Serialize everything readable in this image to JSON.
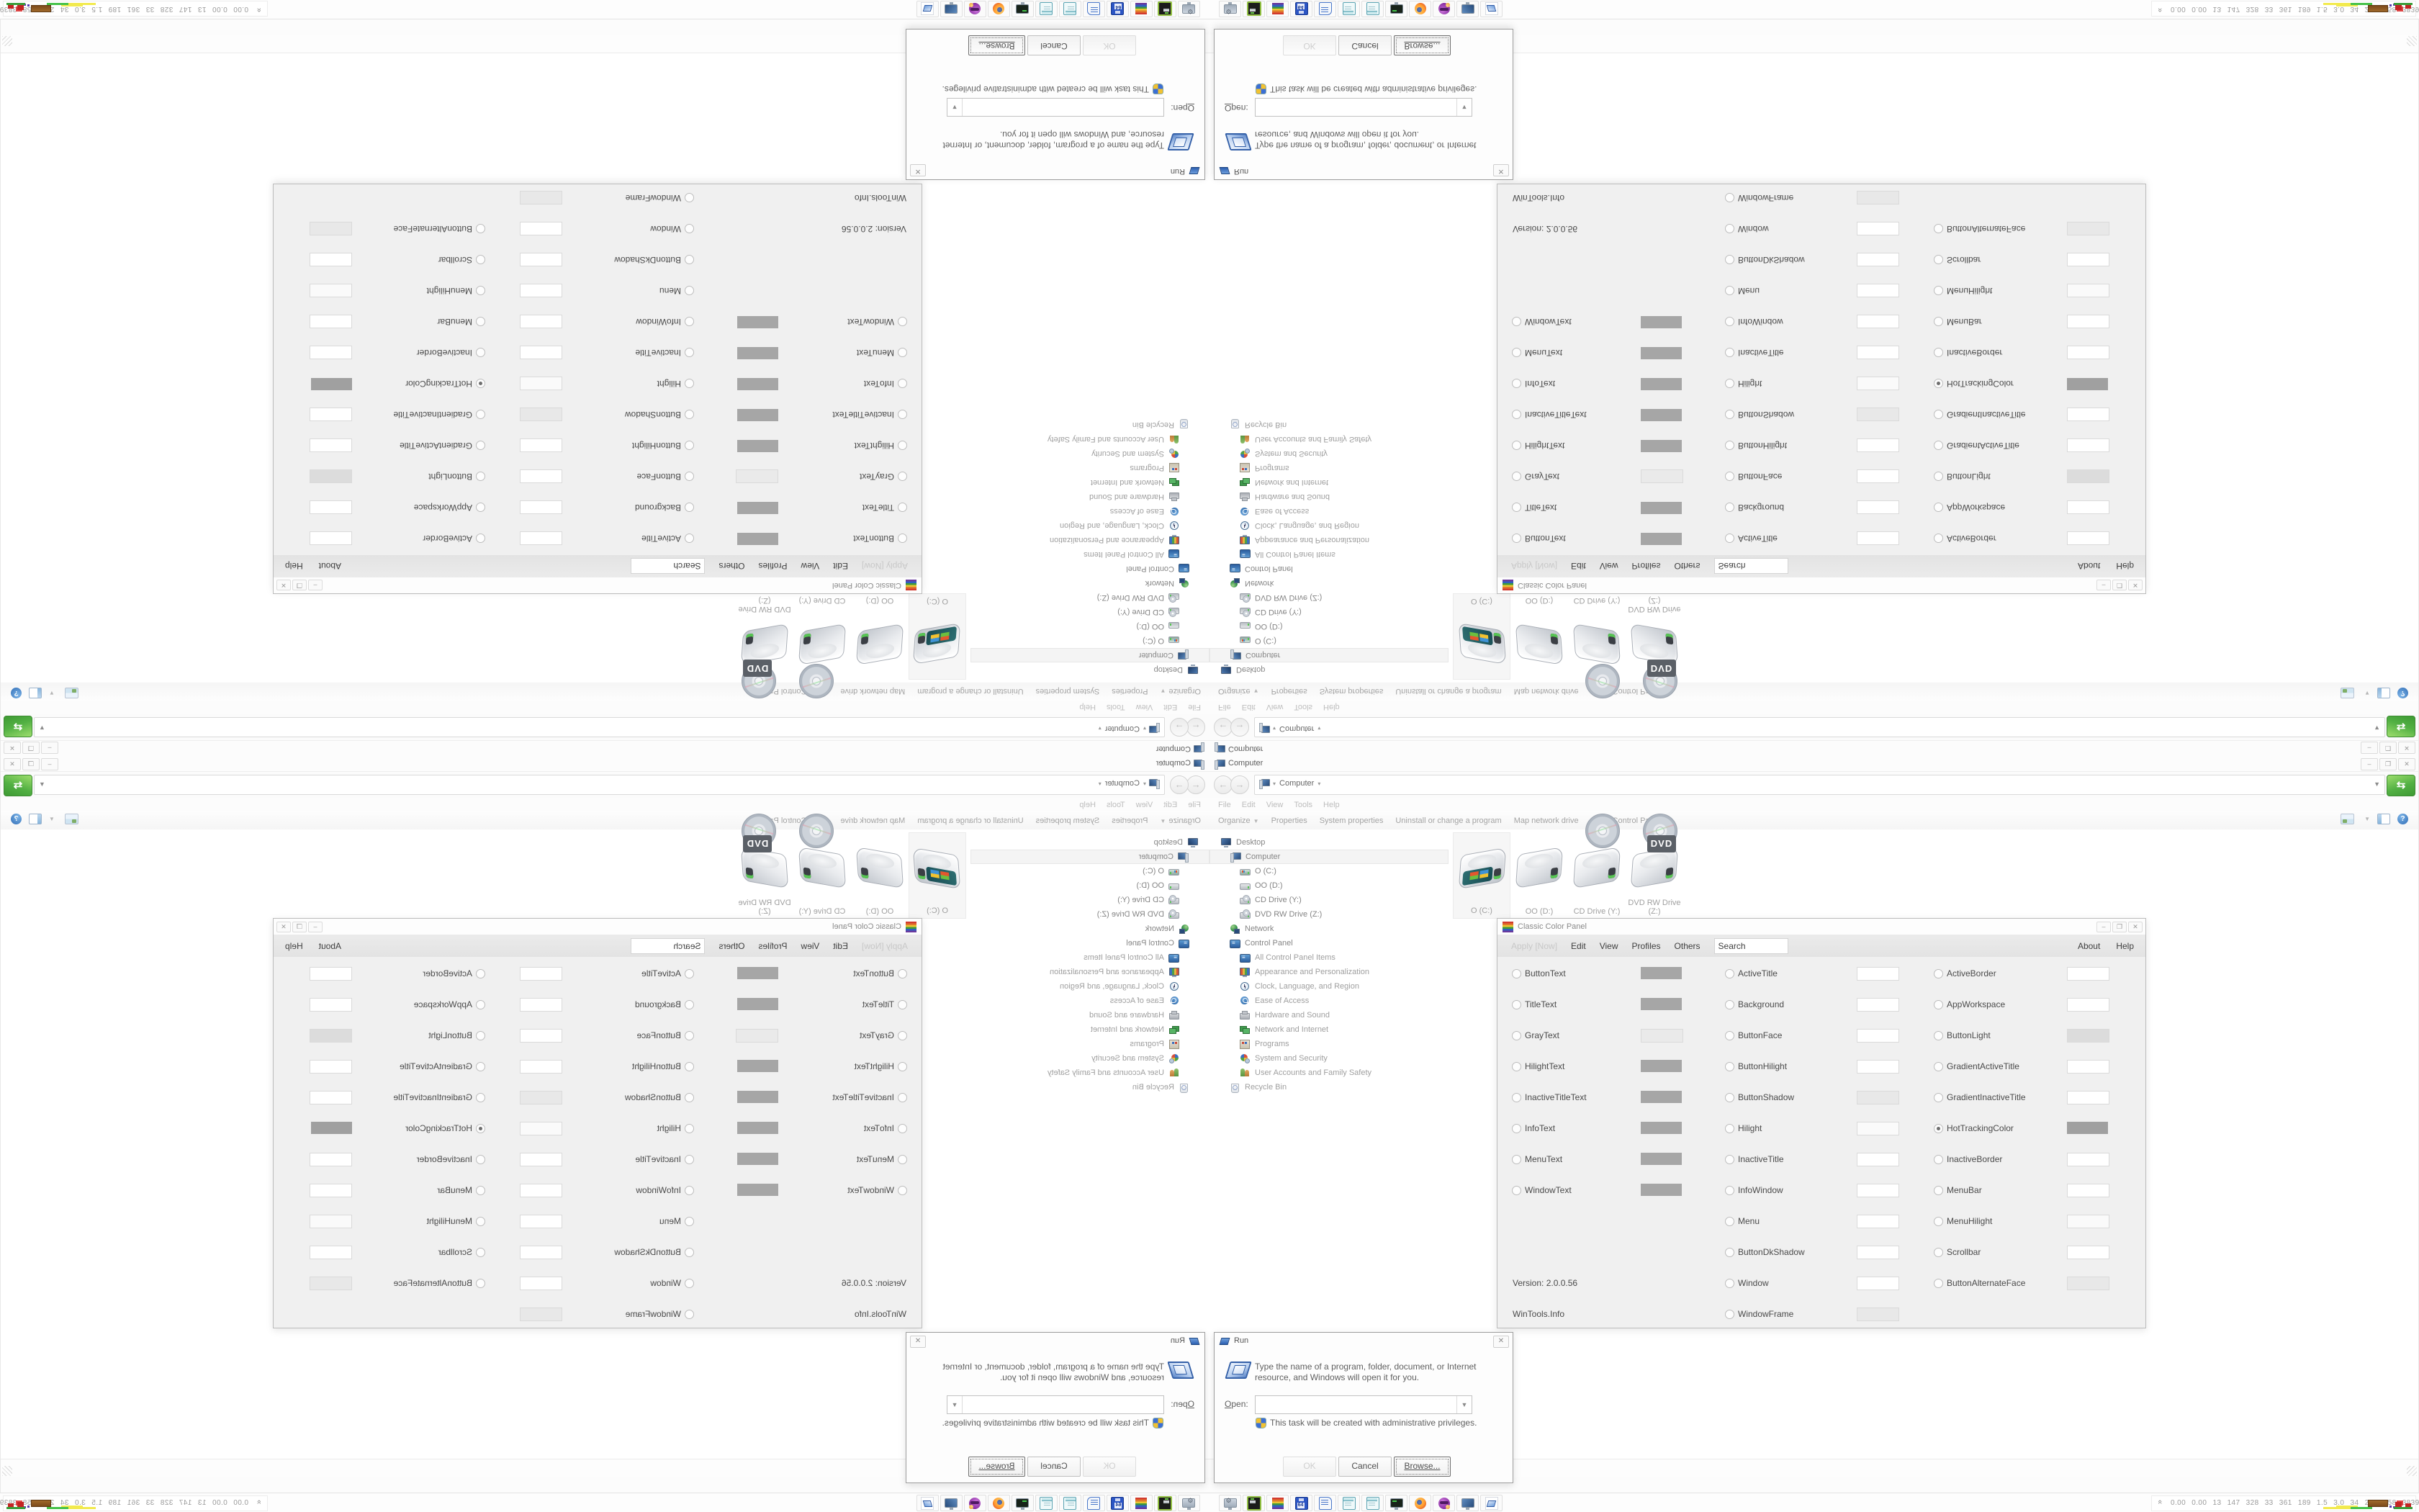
{
  "explorer": {
    "title": "Computer",
    "breadcrumb": "Computer",
    "menu": [
      "File",
      "Edit",
      "View",
      "Tools",
      "Help"
    ],
    "toolbar": [
      "Organize",
      "Properties",
      "System properties",
      "Uninstall or change a program",
      "Map network drive",
      "Open Control Panel"
    ],
    "nav": [
      {
        "label": "Desktop",
        "icon": "desktop-icon",
        "level": 0,
        "dark": true
      },
      {
        "label": "Computer",
        "icon": "computer-icon",
        "level": 1,
        "dark": true,
        "selected": true
      },
      {
        "label": "O (C:)",
        "icon": "os-drive-icon",
        "level": 2,
        "dark": true
      },
      {
        "label": "OO (D:)",
        "icon": "drive-icon",
        "level": 2,
        "dark": true
      },
      {
        "label": "CD Drive (Y:)",
        "icon": "cd-drive-icon",
        "level": 2,
        "dark": true
      },
      {
        "label": "DVD RW Drive (Z:)",
        "icon": "dvd-drive-icon",
        "level": 2,
        "dark": true
      },
      {
        "label": "Network",
        "icon": "network-icon",
        "level": 1,
        "dark": true
      },
      {
        "label": "Control Panel",
        "icon": "control-panel-icon",
        "level": 1,
        "dark": true
      },
      {
        "label": "All Control Panel Items",
        "icon": "control-panel-icon",
        "level": 2
      },
      {
        "label": "Appearance and Personalization",
        "icon": "appearance-icon",
        "level": 2
      },
      {
        "label": "Clock, Language, and Region",
        "icon": "clock-icon",
        "level": 2
      },
      {
        "label": "Ease of Access",
        "icon": "ease-of-access-icon",
        "level": 2
      },
      {
        "label": "Hardware and Sound",
        "icon": "hardware-icon",
        "level": 2
      },
      {
        "label": "Network and Internet",
        "icon": "network-internet-icon",
        "level": 2
      },
      {
        "label": "Programs",
        "icon": "programs-icon",
        "level": 2
      },
      {
        "label": "System and Security",
        "icon": "system-security-icon",
        "level": 2
      },
      {
        "label": "User Accounts and Family Safety",
        "icon": "user-accounts-icon",
        "level": 2
      },
      {
        "label": "Recycle Bin",
        "icon": "recycle-bin-icon",
        "level": 1
      }
    ],
    "drives": [
      {
        "label": "O (C:)",
        "type": "os",
        "selected": true
      },
      {
        "label": "OO (D:)",
        "type": "hdd"
      },
      {
        "label": "CD Drive (Y:)",
        "type": "cd"
      },
      {
        "label": "DVD RW Drive (Z:)",
        "type": "dvd"
      }
    ],
    "window_controls": {
      "minimize": "–",
      "restore": "❐",
      "close": "✕"
    },
    "address_go_glyph": "⇆"
  },
  "ccp": {
    "title": "Classic Color Panel",
    "menu": {
      "apply": "Apply [Now]",
      "edit": "Edit",
      "view": "View",
      "profiles": "Profiles",
      "others": "Others",
      "search": "Search",
      "about": "About",
      "help": "Help"
    },
    "version": "Version: 2.0.0.56",
    "vendor": "WinTools.Info",
    "columns": [
      [
        {
          "label": "ButtonText",
          "color": "#a6a6a6"
        },
        {
          "label": "TitleText",
          "color": "#a6a6a6"
        },
        {
          "label": "GrayText",
          "color": "#eaeaea"
        },
        {
          "label": "HilightText",
          "color": "#a6a6a6"
        },
        {
          "label": "InactiveTitleText",
          "color": "#a6a6a6"
        },
        {
          "label": "InfoText",
          "color": "#a6a6a6"
        },
        {
          "label": "MenuText",
          "color": "#a6a6a6"
        },
        {
          "label": "WindowText",
          "color": "#a6a6a6"
        }
      ],
      [
        {
          "label": "ActiveTitle",
          "color": "#ffffff"
        },
        {
          "label": "Background",
          "color": "#ffffff"
        },
        {
          "label": "ButtonFace",
          "color": "#ffffff"
        },
        {
          "label": "ButtonHilight",
          "color": "#ffffff"
        },
        {
          "label": "ButtonShadow",
          "color": "#e8e8e8"
        },
        {
          "label": "Hilight",
          "color": "#fafafa"
        },
        {
          "label": "InactiveTitle",
          "color": "#ffffff"
        },
        {
          "label": "InfoWindow",
          "color": "#ffffff"
        },
        {
          "label": "Menu",
          "color": "#ffffff"
        },
        {
          "label": "ButtonDkShadow",
          "color": "#ffffff"
        },
        {
          "label": "Window",
          "color": "#ffffff"
        },
        {
          "label": "WindowFrame",
          "color": "#e8e8e8"
        }
      ],
      [
        {
          "label": "ActiveBorder",
          "color": "#ffffff"
        },
        {
          "label": "AppWorkspace",
          "color": "#ffffff"
        },
        {
          "label": "ButtonLight",
          "color": "#dcdcdc"
        },
        {
          "label": "GradientActiveTitle",
          "color": "#ffffff"
        },
        {
          "label": "GradientInactiveTitle",
          "color": "#ffffff"
        },
        {
          "label": "HotTrackingColor",
          "color": "#a0a0a0",
          "selected": true
        },
        {
          "label": "InactiveBorder",
          "color": "#ffffff"
        },
        {
          "label": "MenuBar",
          "color": "#ffffff"
        },
        {
          "label": "MenuHilight",
          "color": "#fafafa"
        },
        {
          "label": "Scrollbar",
          "color": "#ffffff"
        },
        {
          "label": "ButtonAlternateFace",
          "color": "#e8e8e8"
        }
      ]
    ]
  },
  "run": {
    "title": "Run",
    "message": "Type the name of a program, folder, document, or Internet resource, and Windows will open it for you.",
    "open_label": "Open:",
    "open_value": "",
    "admin_note": "This task will be created with administrative privileges.",
    "buttons": {
      "ok": "OK",
      "cancel": "Cancel",
      "browse": "Browse..."
    }
  },
  "taskbar": {
    "buttons": [
      "system-monitor-icon",
      "disk-utility-icon",
      "classic-color-panel-icon",
      "floppy64-icon",
      "print-icon",
      "notepad-icon",
      "notepad-icon",
      "pc-terminal-icon",
      "firefox-icon",
      "purple-app-icon",
      "my-computer-icon",
      "run-app-icon"
    ],
    "tray_text": "0.00 0.00  13  147  328  33  361  189  1.5  3.0  34   29  2758 3839",
    "tray_chevron": "«"
  },
  "colors": {
    "go_button_green": "#52b043",
    "swatch_gray": "#a6a6a6",
    "window_chrome": "#fdfdfd",
    "ccp_background": "#f0f0f0"
  }
}
